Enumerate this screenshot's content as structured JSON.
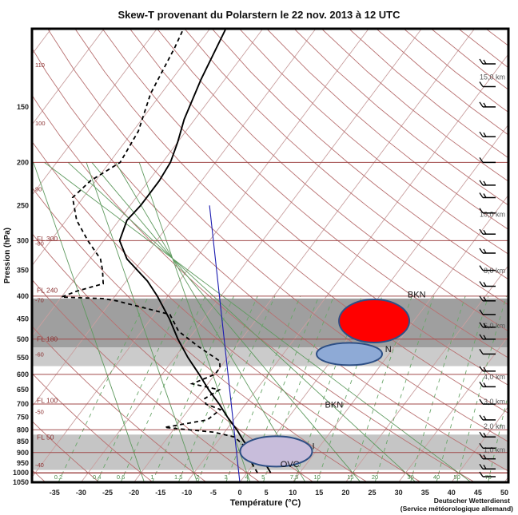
{
  "chart_data": {
    "type": "line",
    "title": "Skew-T provenant du Polarstern le 22 nov. 2013 à 12 UTC",
    "xlabel": "Température (°C)",
    "ylabel": "Pression (hPa)",
    "credit_line1": "Deutscher Wetterdienst",
    "credit_line2": "(Service météorologique allemand)",
    "xlim": [
      -40,
      50
    ],
    "ylim": [
      1050,
      100
    ],
    "y_log_scale": true,
    "x_ticks": [
      -35,
      -30,
      -25,
      -20,
      -15,
      -10,
      -5,
      0,
      5,
      10,
      15,
      20,
      25,
      30,
      35,
      40,
      45,
      50
    ],
    "x_zero_color": "#1a3fb0",
    "y_ticks": [
      150,
      200,
      250,
      300,
      350,
      400,
      450,
      500,
      550,
      600,
      650,
      700,
      750,
      800,
      850,
      900,
      950,
      1000,
      1050
    ],
    "isobar_lines": [
      200,
      300,
      400,
      500,
      600,
      700,
      800,
      900
    ],
    "altitude_labels": [
      {
        "text": "15,0 km",
        "p": 130
      },
      {
        "text": "10,0 km",
        "p": 265
      },
      {
        "text": "8,0 km",
        "p": 355
      },
      {
        "text": "6,0 km",
        "p": 472
      },
      {
        "text": "4,0 km",
        "p": 616
      },
      {
        "text": "3,0 km",
        "p": 700
      },
      {
        "text": "2,0 km",
        "p": 795
      },
      {
        "text": "1,0 km",
        "p": 899
      }
    ],
    "flight_levels": [
      {
        "text": "FL 300",
        "p": 301
      },
      {
        "text": "FL 240",
        "p": 393
      },
      {
        "text": "FL 180",
        "p": 506
      },
      {
        "text": "FL 100",
        "p": 696
      },
      {
        "text": "FL 50",
        "p": 842
      }
    ],
    "left_dry_adiabat_labels": [
      {
        "text": "110",
        "p": 122
      },
      {
        "text": "100",
        "p": 165
      },
      {
        "text": "90",
        "p": 232
      },
      {
        "text": "-80",
        "p": 308
      },
      {
        "text": "-70",
        "p": 413
      },
      {
        "text": "-60",
        "p": 547
      },
      {
        "text": "-50",
        "p": 737
      },
      {
        "text": "-40",
        "p": 970
      }
    ],
    "mixing_ratio_labels": [
      "0.2",
      "0.4",
      "0.6",
      "1",
      "1.5",
      "2",
      "3",
      "4",
      "5",
      "7.5",
      "10",
      "15",
      "20",
      "30",
      "40",
      "50",
      "70"
    ],
    "cloud_bands": [
      {
        "p_top": 405,
        "p_bottom": 522,
        "shade": "#9a9a9a"
      },
      {
        "p_top": 522,
        "p_bottom": 575,
        "shade": "#c8c8c8"
      },
      {
        "p_top": 820,
        "p_bottom": 985,
        "shade": "#c2c2c2"
      }
    ],
    "cloud_labels": [
      {
        "text": "BKN",
        "p": 403,
        "t": 5.5
      },
      {
        "text": "N",
        "p": 535,
        "t": 9
      },
      {
        "text": "BKN",
        "p": 713,
        "t": 5.5
      },
      {
        "text": "I",
        "p": 885,
        "t": 9
      },
      {
        "text": "OVC",
        "p": 970,
        "t": 5.5
      }
    ],
    "cloud_markers": [
      {
        "p": 455,
        "t": 2.5,
        "color": "#ff0000"
      },
      {
        "p": 540,
        "t": 2.5,
        "color": "#8eaad6"
      },
      {
        "p": 895,
        "t": 2.5,
        "color": "#c8bddb"
      }
    ],
    "series": [
      {
        "points": [
          {
            "p": 1000,
            "t": 4.5
          },
          {
            "p": 950,
            "t": 2
          },
          {
            "p": 900,
            "t": -1.5
          },
          {
            "p": 850,
            "t": -5
          },
          {
            "p": 800,
            "t": -8
          },
          {
            "p": 750,
            "t": -11.5
          },
          {
            "p": 700,
            "t": -15
          },
          {
            "p": 650,
            "t": -19
          },
          {
            "p": 600,
            "t": -23
          },
          {
            "p": 550,
            "t": -27.5
          },
          {
            "p": 500,
            "t": -32
          },
          {
            "p": 450,
            "t": -36.5
          },
          {
            "p": 400,
            "t": -42
          },
          {
            "p": 370,
            "t": -46
          },
          {
            "p": 330,
            "t": -53
          },
          {
            "p": 300,
            "t": -57
          },
          {
            "p": 270,
            "t": -58.5
          },
          {
            "p": 250,
            "t": -58
          },
          {
            "p": 220,
            "t": -58
          },
          {
            "p": 200,
            "t": -58.5
          },
          {
            "p": 180,
            "t": -60
          },
          {
            "p": 160,
            "t": -62
          },
          {
            "p": 130,
            "t": -64.5
          },
          {
            "p": 100,
            "t": -67
          }
        ],
        "style": "solid",
        "color": "#000000"
      },
      {
        "points": [
          {
            "p": 1000,
            "t": 2
          },
          {
            "p": 950,
            "t": -0.5
          },
          {
            "p": 900,
            "t": -3
          },
          {
            "p": 860,
            "t": -5
          },
          {
            "p": 830,
            "t": -7.5
          },
          {
            "p": 810,
            "t": -12
          },
          {
            "p": 790,
            "t": -22
          },
          {
            "p": 760,
            "t": -15
          },
          {
            "p": 720,
            "t": -14
          },
          {
            "p": 700,
            "t": -17.5
          },
          {
            "p": 680,
            "t": -18.5
          },
          {
            "p": 650,
            "t": -17
          },
          {
            "p": 630,
            "t": -23
          },
          {
            "p": 600,
            "t": -20
          },
          {
            "p": 580,
            "t": -20
          },
          {
            "p": 560,
            "t": -21
          },
          {
            "p": 520,
            "t": -27
          },
          {
            "p": 480,
            "t": -33
          },
          {
            "p": 440,
            "t": -37
          },
          {
            "p": 410,
            "t": -49
          },
          {
            "p": 405,
            "t": -52
          },
          {
            "p": 402,
            "t": -60
          },
          {
            "p": 390,
            "t": -58
          },
          {
            "p": 375,
            "t": -54
          },
          {
            "p": 350,
            "t": -56
          },
          {
            "p": 330,
            "t": -58
          },
          {
            "p": 300,
            "t": -63
          },
          {
            "p": 270,
            "t": -68
          },
          {
            "p": 240,
            "t": -72
          },
          {
            "p": 220,
            "t": -71
          },
          {
            "p": 200,
            "t": -68
          },
          {
            "p": 170,
            "t": -69
          },
          {
            "p": 140,
            "t": -72
          },
          {
            "p": 110,
            "t": -74
          },
          {
            "p": 100,
            "t": -75
          }
        ],
        "style": "dashed",
        "color": "#000000"
      },
      {
        "points": [
          {
            "p": 1050,
            "t": 0
          },
          {
            "p": 250,
            "t": -45
          }
        ],
        "style": "solid",
        "color": "#1a1ab0"
      }
    ],
    "wind_barbs_pressures": [
      120,
      135,
      150,
      175,
      200,
      225,
      240,
      260,
      290,
      320,
      350,
      380,
      410,
      440,
      470,
      500,
      540,
      590,
      640,
      700,
      760,
      830,
      880,
      930,
      980,
      1020
    ],
    "grid": true
  }
}
